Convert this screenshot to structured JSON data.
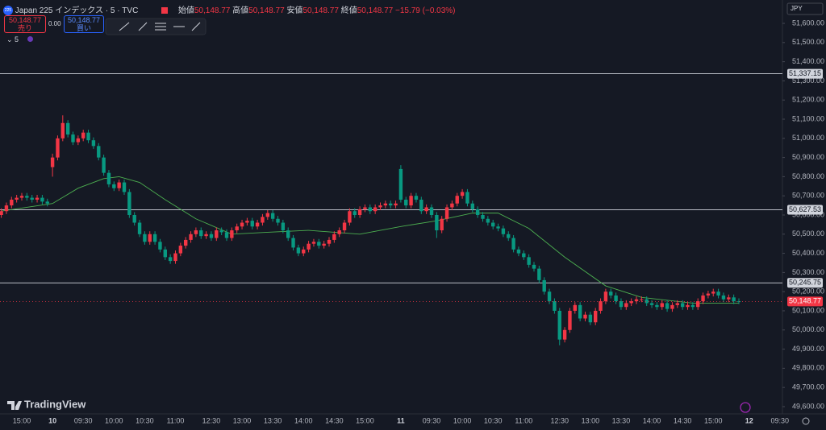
{
  "header": {
    "badge": "225",
    "symbol": "Japan 225 インデックス · 5 · TVC",
    "open_label": "始値",
    "open": "50,148.77",
    "high_label": "高値",
    "high": "50,148.77",
    "low_label": "安値",
    "low": "50,148.77",
    "close_label": "終値",
    "close": "50,148.77",
    "change": "−15.79 (−0.03%)",
    "sell_price": "50,148.77",
    "sell_label": "売り",
    "spread": "0.00",
    "buy_price": "50,148.77",
    "buy_label": "買い",
    "indicator": "5",
    "currency": "JPY",
    "brand": "TradingView"
  },
  "chart_data": {
    "type": "candlestick",
    "up_color": "#f23645",
    "down_color": "#089981",
    "ylim": [
      49562,
      51722
    ],
    "yticks": [
      {
        "value": 51600,
        "label": "51,600.00"
      },
      {
        "value": 51500,
        "label": "51,500.00"
      },
      {
        "value": 51400,
        "label": "51,400.00"
      },
      {
        "value": 51300,
        "label": "51,300.00"
      },
      {
        "value": 51200,
        "label": "51,200.00"
      },
      {
        "value": 51100,
        "label": "51,100.00"
      },
      {
        "value": 51000,
        "label": "51,000.00"
      },
      {
        "value": 50900,
        "label": "50,900.00"
      },
      {
        "value": 50800,
        "label": "50,800.00"
      },
      {
        "value": 50700,
        "label": "50,700.00"
      },
      {
        "value": 50600,
        "label": "50,600.00"
      },
      {
        "value": 50500,
        "label": "50,500.00"
      },
      {
        "value": 50400,
        "label": "50,400.00"
      },
      {
        "value": 50300,
        "label": "50,300.00"
      },
      {
        "value": 50200,
        "label": "50,200.00"
      },
      {
        "value": 50100,
        "label": "50,100.00"
      },
      {
        "value": 50000,
        "label": "50,000.00"
      },
      {
        "value": 49900,
        "label": "49,900.00"
      },
      {
        "value": 49800,
        "label": "49,800.00"
      },
      {
        "value": 49700,
        "label": "49,700.00"
      },
      {
        "value": 49600,
        "label": "49,600.00"
      }
    ],
    "categories": [
      null,
      null,
      null,
      null,
      "15:00",
      null,
      null,
      null,
      null,
      null,
      "10",
      null,
      null,
      null,
      null,
      null,
      "09:30",
      null,
      null,
      null,
      null,
      null,
      "10:00",
      null,
      null,
      null,
      null,
      null,
      "10:30",
      null,
      null,
      null,
      null,
      null,
      "11:00",
      null,
      null,
      null,
      null,
      null,
      null,
      "12:30",
      null,
      null,
      null,
      null,
      null,
      "13:00",
      null,
      null,
      null,
      null,
      null,
      "13:30",
      null,
      null,
      null,
      null,
      null,
      "14:00",
      null,
      null,
      null,
      null,
      null,
      "14:30",
      null,
      null,
      null,
      null,
      null,
      "15:00",
      null,
      null,
      null,
      null,
      null,
      null,
      "11",
      null,
      null,
      null,
      null,
      null,
      "09:30",
      null,
      null,
      null,
      null,
      null,
      "10:00",
      null,
      null,
      null,
      null,
      null,
      "10:30",
      null,
      null,
      null,
      null,
      null,
      "11:00",
      null,
      null,
      null,
      null,
      null,
      null,
      "12:30",
      null,
      null,
      null,
      null,
      null,
      "13:00",
      null,
      null,
      null,
      null,
      null,
      "13:30",
      null,
      null,
      null,
      null,
      null,
      "14:00",
      null,
      null,
      null,
      null,
      null,
      "14:30",
      null,
      null,
      null,
      null,
      null,
      "15:00",
      null,
      null,
      null,
      null,
      null,
      null,
      "12",
      null,
      null,
      null,
      null,
      null,
      "09:30"
    ],
    "open": [
      50600,
      50620,
      50650,
      50680,
      50690,
      50700,
      50690,
      50680,
      50690,
      50670,
      50850,
      50900,
      51000,
      51080,
      51020,
      50980,
      51000,
      51030,
      50990,
      50960,
      50900,
      50820,
      50760,
      50740,
      50770,
      50720,
      50600,
      50560,
      50500,
      50460,
      50500,
      50460,
      50420,
      50380,
      50360,
      50400,
      50440,
      50470,
      50500,
      50520,
      50490,
      50500,
      50480,
      50520,
      50510,
      50480,
      50520,
      50540,
      50560,
      50570,
      50540,
      50560,
      50590,
      50610,
      50580,
      50560,
      50520,
      50480,
      50430,
      50400,
      50420,
      50450,
      50460,
      50440,
      50450,
      50470,
      50500,
      50520,
      50560,
      50620,
      50600,
      50630,
      50640,
      50620,
      50640,
      50650,
      50660,
      50650,
      50840,
      50680,
      50650,
      50700,
      50680,
      50620,
      50640,
      50600,
      50520,
      50580,
      50640,
      50660,
      50700,
      50720,
      50660,
      50630,
      50600,
      50580,
      50560,
      50540,
      50530,
      50500,
      50480,
      50420,
      50400,
      50380,
      50340,
      50320,
      50260,
      50200,
      50150,
      50100,
      49950,
      50000,
      50100,
      50130,
      50060,
      50080,
      50040,
      50100,
      50150,
      50200,
      50180,
      50150,
      50120,
      50140,
      50150,
      50160,
      50160,
      50140,
      50130,
      50120,
      50140,
      50110,
      50130,
      50140,
      50120,
      50130,
      50120,
      50150,
      50180,
      50190,
      50200,
      50180,
      50160,
      50170,
      50150,
      null,
      null,
      null,
      null,
      null,
      null,
      null,
      null
    ],
    "high": [
      50635,
      50665,
      50695,
      50705,
      50715,
      50715,
      50705,
      50705,
      50705,
      50685,
      50920,
      51015,
      51120,
      51095,
      51035,
      51015,
      51045,
      51045,
      51005,
      50975,
      50915,
      50835,
      50775,
      50785,
      50785,
      50735,
      50615,
      50575,
      50515,
      50515,
      50515,
      50475,
      50435,
      50395,
      50415,
      50455,
      50485,
      50515,
      50535,
      50535,
      50515,
      50515,
      50535,
      50535,
      50525,
      50535,
      50555,
      50575,
      50585,
      50585,
      50575,
      50605,
      50625,
      50625,
      50595,
      50575,
      50535,
      50495,
      50445,
      50435,
      50465,
      50475,
      50475,
      50465,
      50485,
      50515,
      50535,
      50575,
      50635,
      50635,
      50645,
      50655,
      50655,
      50655,
      50665,
      50675,
      50675,
      50675,
      50860,
      50695,
      50715,
      50715,
      50695,
      50655,
      50655,
      50615,
      50595,
      50655,
      50675,
      50715,
      50735,
      50735,
      50675,
      50645,
      50615,
      50595,
      50575,
      50555,
      50545,
      50515,
      50495,
      50435,
      50415,
      50395,
      50355,
      50335,
      50275,
      50215,
      50165,
      50115,
      50015,
      50115,
      50145,
      50145,
      50095,
      50095,
      50115,
      50165,
      50215,
      50215,
      50195,
      50165,
      50155,
      50165,
      50175,
      50175,
      50175,
      50155,
      50145,
      50155,
      50155,
      50145,
      50155,
      50155,
      50145,
      50145,
      50165,
      50195,
      50205,
      50215,
      50215,
      50195,
      50185,
      50185,
      50165,
      null,
      null,
      null,
      null,
      null,
      null,
      null,
      null
    ],
    "low": [
      50585,
      50605,
      50635,
      50665,
      50675,
      50675,
      50665,
      50665,
      50655,
      50645,
      50800,
      50885,
      50985,
      51005,
      50965,
      50965,
      50985,
      50975,
      50945,
      50885,
      50805,
      50745,
      50725,
      50725,
      50705,
      50585,
      50545,
      50485,
      50445,
      50445,
      50445,
      50405,
      50365,
      50345,
      50345,
      50385,
      50425,
      50455,
      50485,
      50475,
      50475,
      50465,
      50465,
      50495,
      50465,
      50465,
      50505,
      50525,
      50545,
      50525,
      50525,
      50545,
      50575,
      50565,
      50545,
      50505,
      50465,
      50415,
      50385,
      50385,
      50405,
      50435,
      50425,
      50425,
      50435,
      50455,
      50485,
      50505,
      50545,
      50585,
      50585,
      50615,
      50605,
      50605,
      50625,
      50635,
      50635,
      50635,
      50665,
      50635,
      50635,
      50665,
      50605,
      50605,
      50585,
      50480,
      50505,
      50565,
      50625,
      50645,
      50685,
      50645,
      50615,
      50585,
      50565,
      50545,
      50525,
      50515,
      50485,
      50465,
      50405,
      50385,
      50365,
      50325,
      50305,
      50245,
      50185,
      50135,
      50085,
      49920,
      49935,
      49985,
      50085,
      50045,
      50045,
      50025,
      50025,
      50085,
      50135,
      50165,
      50135,
      50105,
      50105,
      50125,
      50135,
      50145,
      50125,
      50115,
      50105,
      50105,
      50095,
      50095,
      50115,
      50105,
      50105,
      50105,
      50105,
      50135,
      50165,
      50175,
      50165,
      50145,
      50145,
      50135,
      50135,
      null,
      null,
      null,
      null,
      null,
      null,
      null,
      null
    ],
    "close": [
      50620,
      50650,
      50680,
      50690,
      50700,
      50690,
      50680,
      50690,
      50670,
      50660,
      50900,
      51000,
      51080,
      51020,
      50980,
      51000,
      51030,
      50990,
      50960,
      50900,
      50820,
      50760,
      50740,
      50770,
      50720,
      50600,
      50560,
      50500,
      50460,
      50500,
      50460,
      50420,
      50380,
      50360,
      50400,
      50440,
      50470,
      50500,
      50520,
      50490,
      50500,
      50480,
      50520,
      50510,
      50480,
      50520,
      50540,
      50560,
      50570,
      50540,
      50560,
      50590,
      50610,
      50580,
      50560,
      50520,
      50480,
      50430,
      50400,
      50420,
      50450,
      50460,
      50440,
      50450,
      50470,
      50500,
      50520,
      50560,
      50620,
      50600,
      50630,
      50640,
      50620,
      50640,
      50650,
      50660,
      50650,
      50660,
      50680,
      50650,
      50700,
      50680,
      50620,
      50640,
      50600,
      50520,
      50580,
      50640,
      50660,
      50700,
      50720,
      50660,
      50630,
      50600,
      50580,
      50560,
      50540,
      50530,
      50500,
      50480,
      50420,
      50400,
      50380,
      50340,
      50320,
      50260,
      50200,
      50150,
      50100,
      49950,
      50000,
      50100,
      50130,
      50060,
      50080,
      50040,
      50100,
      50150,
      50200,
      50180,
      50150,
      50120,
      50140,
      50150,
      50160,
      50160,
      50140,
      50130,
      50120,
      50140,
      50110,
      50130,
      50140,
      50120,
      50130,
      50120,
      50150,
      50180,
      50190,
      50200,
      50180,
      50160,
      50170,
      50150,
      50148.77,
      null,
      null,
      null,
      null,
      null,
      null,
      null,
      null
    ],
    "ma": {
      "color": "#4caf50",
      "x": [
        0,
        5,
        10,
        15,
        20,
        23,
        27,
        32,
        38,
        45,
        52,
        60,
        70,
        78,
        85,
        92,
        97,
        103,
        110,
        118,
        125,
        135,
        144
      ],
      "values": [
        50620,
        50640,
        50660,
        50740,
        50790,
        50800,
        50770,
        50680,
        50580,
        50500,
        50510,
        50520,
        50500,
        50540,
        50570,
        50610,
        50610,
        50530,
        50380,
        50230,
        50170,
        50140,
        50140
      ]
    },
    "price_lines": [
      {
        "value": 51337.15,
        "label": "51,337.15"
      },
      {
        "value": 50627.53,
        "label": "50,627.53"
      },
      {
        "value": 50245.75,
        "label": "50,245.75"
      }
    ],
    "last_price": {
      "value": 50148.77,
      "label": "50,148.77",
      "color": "#f23645"
    }
  }
}
